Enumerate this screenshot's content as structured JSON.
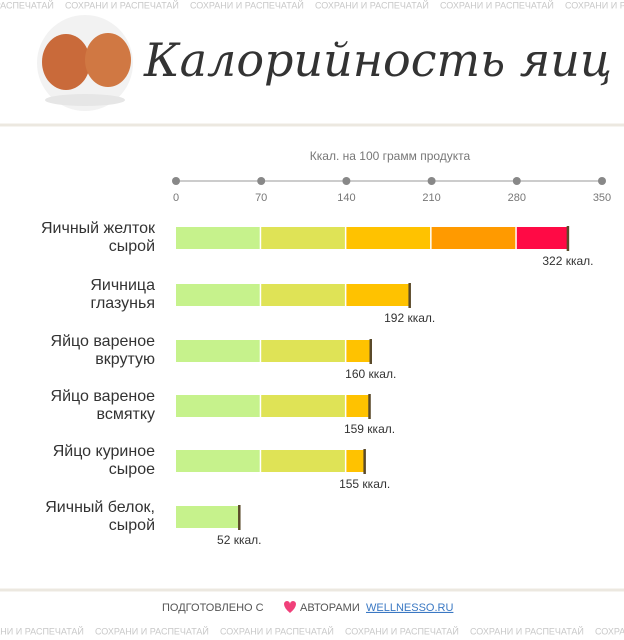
{
  "chart_data": {
    "type": "hbar",
    "title": "Калорийность яиц",
    "x_label": "Ккал. на 100 грамм продукта",
    "categories": [
      [
        "Яичный желток",
        "сырой"
      ],
      [
        "Яичница",
        "глазунья"
      ],
      [
        "Яйцо вареное",
        "вкрутую"
      ],
      [
        "Яйцо вареное",
        "всмятку"
      ],
      [
        "Яйцо куриное",
        "сырое"
      ],
      [
        "Яичный белок,",
        "сырой"
      ]
    ],
    "values": [
      322,
      192,
      160,
      159,
      155,
      52
    ],
    "value_labels": [
      "322 ккал.",
      "192 ккал.",
      "160 ккал.",
      "159 ккал.",
      "155 ккал.",
      "52 ккал."
    ],
    "xlim": [
      0,
      350
    ],
    "xticks": [
      0,
      70,
      140,
      210,
      280,
      350
    ],
    "band_colors": [
      "#c6f28c",
      "#dfe356",
      "#ffc200",
      "#ff9a00",
      "#ff0a45"
    ],
    "watermark": "СОХРАНИ И РАСПЕЧАТАЙ",
    "footer": {
      "prefix": "ПОДГОТОВЛЕНО С",
      "middle": "АВТОРАМИ",
      "link": "WELLNESSO.RU"
    }
  }
}
